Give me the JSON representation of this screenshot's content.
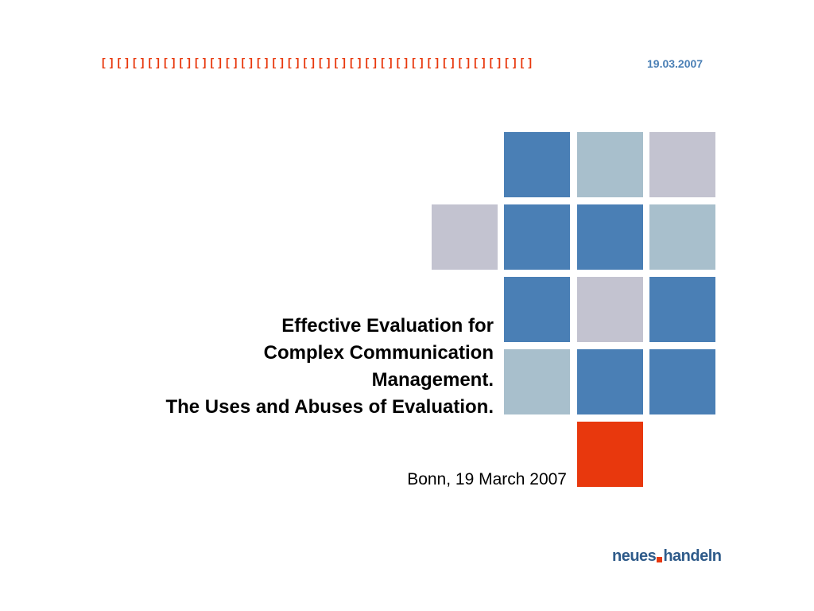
{
  "header": {
    "bracket_pattern": "[ ] [ ] [ ] [ ] [ ] [ ] [ ] [ ] [ ] [ ] [ ] [ ] [ ] [ ] [ ] [ ] [ ] [ ] [ ] [ ] [ ] [ ] [ ] [ ] [ ] [ ] [ ] [ ]",
    "date": "19.03.2007"
  },
  "title": {
    "line1": "Effective Evaluation for",
    "line2": "Complex Communication",
    "line3": "Management.",
    "line4": "The Uses and Abuses of Evaluation."
  },
  "subtitle": "Bonn, 19 March 2007",
  "logo": {
    "part1": "neues",
    "part2": "handeln"
  },
  "colors": {
    "steel_blue": "#4a7fb5",
    "light_blue_gray": "#a8bfcc",
    "lavender_gray": "#c3c3d0",
    "accent_red": "#e8380d",
    "logo_blue": "#2f5b8a"
  }
}
